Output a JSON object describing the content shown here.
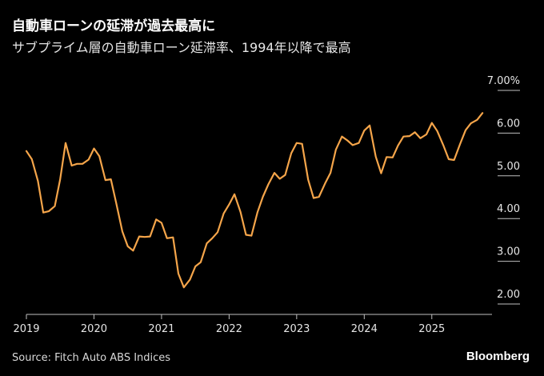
{
  "header": {
    "title": "自動車ローンの延滞が過去最高に",
    "subtitle": "サブプライム層の自動車ローン延滞率、1994年以降で最高"
  },
  "footer": {
    "source": "Source: Fitch Auto ABS Indices",
    "brand": "Bloomberg"
  },
  "colors": {
    "background": "#000000",
    "line": "#f5a54a",
    "axis": "#bfbfbf",
    "text": "#e6e6e6"
  },
  "chart_data": {
    "type": "line",
    "title": "自動車ローンの延滞が過去最高に",
    "xlabel": "",
    "ylabel": "",
    "grid": false,
    "ylim": [
      2.0,
      7.0
    ],
    "xlim": [
      2019.0,
      2025.95
    ],
    "y_ticks": [
      {
        "value": 7.0,
        "label": "7.00%"
      },
      {
        "value": 6.0,
        "label": "6.00"
      },
      {
        "value": 5.0,
        "label": "5.00"
      },
      {
        "value": 4.0,
        "label": "4.00"
      },
      {
        "value": 3.0,
        "label": "3.00"
      },
      {
        "value": 2.0,
        "label": "2.00"
      }
    ],
    "x_ticks": [
      {
        "value": 2019,
        "label": "2019"
      },
      {
        "value": 2020,
        "label": "2020"
      },
      {
        "value": 2021,
        "label": "2021"
      },
      {
        "value": 2022,
        "label": "2022"
      },
      {
        "value": 2023,
        "label": "2023"
      },
      {
        "value": 2024,
        "label": "2024"
      },
      {
        "value": 2025,
        "label": "2025"
      }
    ],
    "series": [
      {
        "name": "サブプライム層の自動車ローン延滞率",
        "x": [
          2019.0,
          2019.08,
          2019.17,
          2019.25,
          2019.33,
          2019.42,
          2019.5,
          2019.58,
          2019.67,
          2019.75,
          2019.83,
          2019.92,
          2020.0,
          2020.08,
          2020.17,
          2020.25,
          2020.33,
          2020.42,
          2020.5,
          2020.58,
          2020.67,
          2020.75,
          2020.83,
          2020.92,
          2021.0,
          2021.08,
          2021.17,
          2021.25,
          2021.33,
          2021.42,
          2021.5,
          2021.58,
          2021.67,
          2021.75,
          2021.83,
          2021.92,
          2022.0,
          2022.08,
          2022.17,
          2022.25,
          2022.33,
          2022.42,
          2022.5,
          2022.58,
          2022.67,
          2022.75,
          2022.83,
          2022.92,
          2023.0,
          2023.08,
          2023.17,
          2023.25,
          2023.33,
          2023.42,
          2023.5,
          2023.58,
          2023.67,
          2023.75,
          2023.83,
          2023.92,
          2024.0,
          2024.08,
          2024.17,
          2024.25,
          2024.33,
          2024.42,
          2024.5,
          2024.58,
          2024.67,
          2024.75,
          2024.83,
          2024.92,
          2025.0,
          2025.08,
          2025.17,
          2025.25,
          2025.33,
          2025.42,
          2025.5,
          2025.58,
          2025.67,
          2025.75
        ],
        "values": [
          5.58,
          5.39,
          4.88,
          4.14,
          4.17,
          4.29,
          4.92,
          5.77,
          5.24,
          5.28,
          5.28,
          5.38,
          5.64,
          5.46,
          4.9,
          4.92,
          4.36,
          3.7,
          3.35,
          3.25,
          3.58,
          3.57,
          3.58,
          3.98,
          3.9,
          3.54,
          3.56,
          2.71,
          2.39,
          2.57,
          2.88,
          2.98,
          3.42,
          3.54,
          3.68,
          4.12,
          4.33,
          4.57,
          4.15,
          3.62,
          3.6,
          4.15,
          4.51,
          4.8,
          5.07,
          4.93,
          5.02,
          5.53,
          5.77,
          5.75,
          4.91,
          4.48,
          4.51,
          4.82,
          5.07,
          5.61,
          5.92,
          5.83,
          5.72,
          5.77,
          6.06,
          6.18,
          5.45,
          5.06,
          5.44,
          5.43,
          5.71,
          5.92,
          5.93,
          6.02,
          5.88,
          5.97,
          6.24,
          6.05,
          5.72,
          5.39,
          5.37,
          5.75,
          6.07,
          6.23,
          6.31,
          6.47
        ]
      }
    ]
  }
}
